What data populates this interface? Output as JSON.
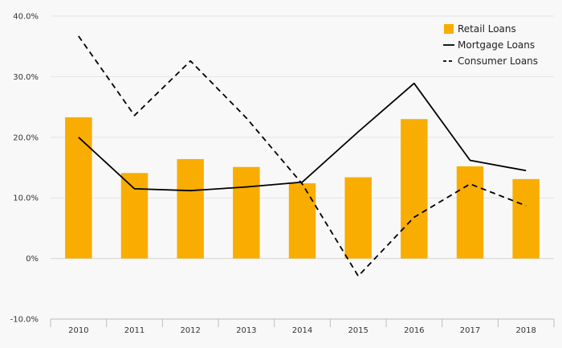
{
  "chart_data": {
    "type": "bar",
    "categories": [
      "2010",
      "2011",
      "2012",
      "2013",
      "2014",
      "2015",
      "2016",
      "2017",
      "2018"
    ],
    "series": [
      {
        "name": "Retail Loans",
        "kind": "bar",
        "color": "#f8ad00",
        "values": [
          23.3,
          14.1,
          16.4,
          15.1,
          12.4,
          13.4,
          23.0,
          15.2,
          13.1
        ]
      },
      {
        "name": "Mortgage Loans",
        "kind": "line",
        "dash": "solid",
        "color": "#000000",
        "values": [
          20.0,
          11.5,
          11.2,
          11.8,
          12.6,
          20.9,
          28.9,
          16.2,
          14.5
        ]
      },
      {
        "name": "Consumer Loans",
        "kind": "line",
        "dash": "dashed",
        "color": "#000000",
        "values": [
          36.7,
          23.6,
          32.6,
          23.2,
          12.3,
          -2.9,
          6.8,
          12.3,
          8.7
        ]
      }
    ],
    "ylim": [
      -10,
      40
    ],
    "yticks": [
      -10,
      0,
      10,
      20,
      30,
      40
    ],
    "ytick_labels": [
      "-10.0%",
      "0%",
      "10.0%",
      "20.0%",
      "30.0%",
      "40.0%"
    ],
    "grid": true,
    "legend_position": "top-right",
    "title": "",
    "xlabel": "",
    "ylabel": ""
  }
}
